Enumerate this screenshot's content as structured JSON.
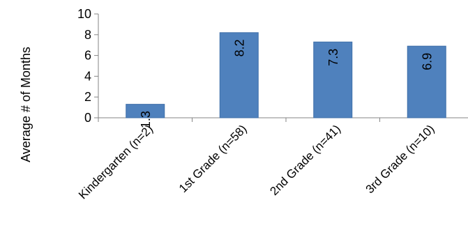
{
  "chart_data": {
    "type": "bar",
    "title": "",
    "xlabel": "",
    "ylabel": "Average # of Months",
    "categories": [
      "Kindergarten (n=2)",
      "1st Grade (n=58)",
      "2nd Grade (n=41)",
      "3rd Grade (n=10)"
    ],
    "values": [
      1.3,
      8.2,
      7.3,
      6.9
    ],
    "data_labels": [
      "1.3",
      "8.2",
      "7.3",
      "6.9"
    ],
    "ylim": [
      0,
      10
    ],
    "yticks": [
      0,
      2,
      4,
      6,
      8,
      10
    ],
    "ytick_labels": [
      "0",
      "2",
      "4",
      "6",
      "8",
      "10"
    ],
    "grid": false,
    "legend": "none",
    "bar_color": "#4f81bd",
    "bar_edge_color": "#3f6fa8"
  }
}
